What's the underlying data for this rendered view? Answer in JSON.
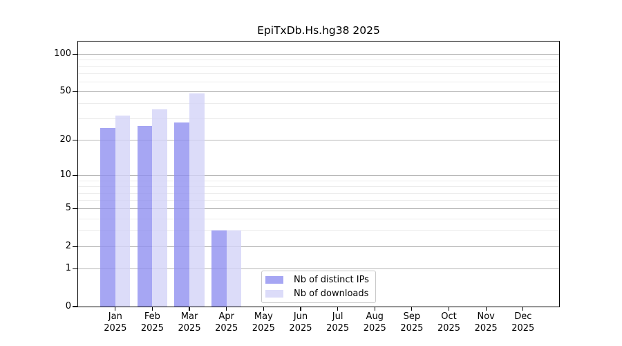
{
  "chart_data": {
    "type": "bar",
    "title": "EpiTxDb.Hs.hg38 2025",
    "categories": [
      "Jan",
      "Feb",
      "Mar",
      "Apr",
      "May",
      "Jun",
      "Jul",
      "Aug",
      "Sep",
      "Oct",
      "Nov",
      "Dec"
    ],
    "x_year_label": "2025",
    "series": [
      {
        "name": "Nb of distinct IPs",
        "color": "#a6a6f3",
        "values": [
          25,
          26,
          28,
          3,
          0,
          0,
          0,
          0,
          0,
          0,
          0,
          0
        ]
      },
      {
        "name": "Nb of downloads",
        "color": "#dcdcf9",
        "values": [
          32,
          36,
          48,
          3,
          0,
          0,
          0,
          0,
          0,
          0,
          0,
          0
        ]
      }
    ],
    "yticks": [
      0,
      1,
      2,
      5,
      10,
      20,
      50,
      100
    ],
    "y_minor_gridlines": [
      3,
      4,
      6,
      7,
      8,
      9,
      30,
      40,
      60,
      70,
      80,
      90
    ],
    "ylim": [
      0,
      126
    ],
    "yscale": "log1p",
    "grid": true,
    "legend_position": "inside-bottom-center",
    "colors": {
      "axis": "#000000",
      "text": "#000000",
      "major_grid": "#b6b6b6",
      "minor_grid": "#ececec",
      "background": "#ffffff",
      "legend_border": "#c8c8c8"
    }
  }
}
